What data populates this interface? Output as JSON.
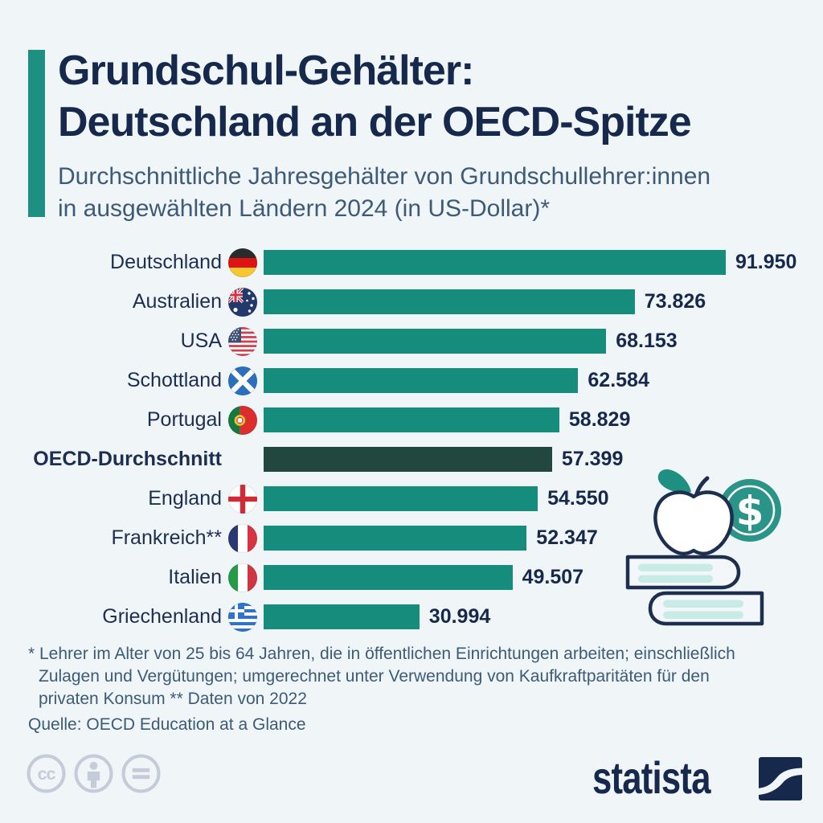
{
  "header": {
    "title_line1": "Grundschul-Gehälter:",
    "title_line2": "Deutschland an der OECD-Spitze",
    "subtitle_line1": "Durchschnittliche Jahresgehälter von Grundschullehrer:innen",
    "subtitle_line2": "in ausgewählten Ländern 2024 (in US-Dollar)*"
  },
  "chart_data": {
    "type": "bar",
    "orientation": "horizontal",
    "title": "Grundschul-Gehälter: Deutschland an der OECD-Spitze",
    "subtitle": "Durchschnittliche Jahresgehälter von Grundschullehrer:innen in ausgewählten Ländern 2024 (in US-Dollar)*",
    "unit": "US-Dollar",
    "xlim": [
      0,
      91950
    ],
    "grid": false,
    "legend": false,
    "categories": [
      "Deutschland",
      "Australien",
      "USA",
      "Schottland",
      "Portugal",
      "OECD-Durchschnitt",
      "England",
      "Frankreich**",
      "Italien",
      "Griechenland"
    ],
    "values": [
      91950,
      73826,
      68153,
      62584,
      58829,
      57399,
      54550,
      52347,
      49507,
      30994
    ],
    "rows": [
      {
        "label": "Deutschland",
        "flag": "germany-flag",
        "value": 91950,
        "value_label": "91.950",
        "highlight": false
      },
      {
        "label": "Australien",
        "flag": "australia-flag",
        "value": 73826,
        "value_label": "73.826",
        "highlight": false
      },
      {
        "label": "USA",
        "flag": "usa-flag",
        "value": 68153,
        "value_label": "68.153",
        "highlight": false
      },
      {
        "label": "Schottland",
        "flag": "scotland-flag",
        "value": 62584,
        "value_label": "62.584",
        "highlight": false
      },
      {
        "label": "Portugal",
        "flag": "portugal-flag",
        "value": 58829,
        "value_label": "58.829",
        "highlight": false
      },
      {
        "label": "OECD-Durchschnitt",
        "flag": null,
        "value": 57399,
        "value_label": "57.399",
        "highlight": true
      },
      {
        "label": "England",
        "flag": "england-flag",
        "value": 54550,
        "value_label": "54.550",
        "highlight": false
      },
      {
        "label": "Frankreich**",
        "flag": "france-flag",
        "value": 52347,
        "value_label": "52.347",
        "highlight": false
      },
      {
        "label": "Italien",
        "flag": "italy-flag",
        "value": 49507,
        "value_label": "49.507",
        "highlight": false
      },
      {
        "label": "Griechenland",
        "flag": "greece-flag",
        "value": 30994,
        "value_label": "30.994",
        "highlight": false
      }
    ]
  },
  "footnote": {
    "line1": "* Lehrer im Alter von 25 bis 64 Jahren, die in öffentlichen Einrichtungen arbeiten; einschließlich",
    "line2": "Zulagen und Vergütungen; umgerechnet unter Verwendung von Kaufkraftparitäten für den",
    "line3": "privaten Konsum    ** Daten von 2022"
  },
  "source": "Quelle: OECD Education at a Glance",
  "branding": {
    "logo_text": "statista",
    "license_icons": [
      "cc-icon",
      "attribution-person-icon",
      "no-derivatives-equals-icon"
    ],
    "illustration_icons": [
      "apple-icon",
      "dollar-coin-icon",
      "books-icon"
    ]
  },
  "colors": {
    "background": "#f0f5f8",
    "accent": "#1e8f80",
    "bar": "#168c7c",
    "bar_highlight": "#21473f",
    "title": "#16294d",
    "subtitle": "#3d5a78",
    "label": "#1c2e52",
    "value": "#16294d",
    "icon_grey": "#c3ccd8",
    "illustration_navy": "#1d2e4e",
    "illustration_mint": "#c8ebe6",
    "coin_teal": "#2a9488"
  }
}
